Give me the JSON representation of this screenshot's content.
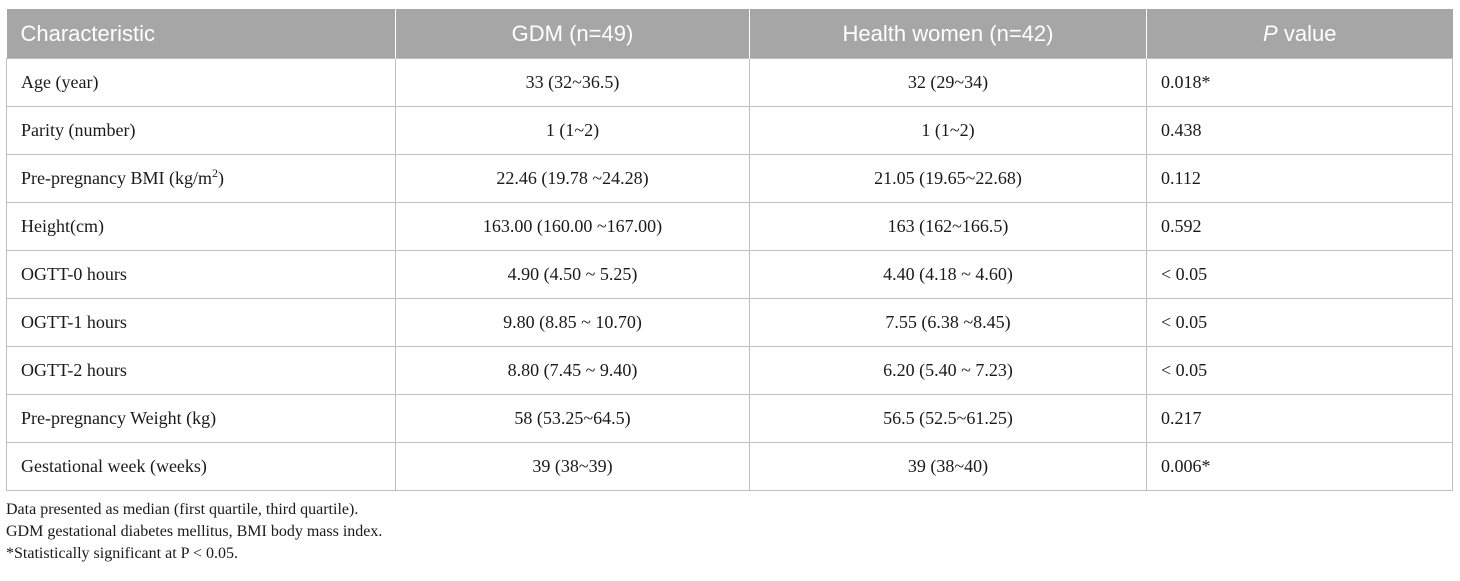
{
  "table": {
    "headers": {
      "characteristic": "Characteristic",
      "gdm": "GDM (n=49)",
      "health": "Health women (n=42)",
      "p_italic": "P",
      "p_rest": " value"
    },
    "rows": [
      {
        "label": "Age (year)",
        "gdm": "33 (32~36.5)",
        "health": "32 (29~34)",
        "p": "0.018*"
      },
      {
        "label": "Parity (number)",
        "gdm": "1 (1~2)",
        "health": "1 (1~2)",
        "p": "0.438"
      },
      {
        "label": "Pre-pregnancy BMI (kg/m",
        "label_sup": "2",
        "label_after": ")",
        "gdm": "22.46 (19.78 ~24.28)",
        "health": "21.05 (19.65~22.68)",
        "p": "0.112"
      },
      {
        "label": "Height(cm)",
        "gdm": "163.00 (160.00 ~167.00)",
        "health": "163 (162~166.5)",
        "p": "0.592"
      },
      {
        "label": "OGTT-0 hours",
        "gdm": "4.90 (4.50 ~ 5.25)",
        "health": "4.40 (4.18 ~ 4.60)",
        "p": "< 0.05"
      },
      {
        "label": "OGTT-1 hours",
        "gdm": "9.80 (8.85 ~ 10.70)",
        "health": "7.55 (6.38 ~8.45)",
        "p": "< 0.05"
      },
      {
        "label": "OGTT-2 hours",
        "gdm": "8.80 (7.45 ~ 9.40)",
        "health": "6.20 (5.40 ~ 7.23)",
        "p": "< 0.05"
      },
      {
        "label": "Pre-pregnancy Weight (kg)",
        "gdm": "58 (53.25~64.5)",
        "health": "56.5 (52.5~61.25)",
        "p": "0.217"
      },
      {
        "label": "Gestational week (weeks)",
        "gdm": "39 (38~39)",
        "health": "39 (38~40)",
        "p": "0.006*"
      }
    ]
  },
  "notes": [
    "Data presented as median (first quartile, third quartile).",
    "GDM gestational diabetes mellitus, BMI body mass index.",
    "*Statistically significant at P < 0.05."
  ],
  "colors": {
    "header_bg": "#a6a6a6",
    "header_text": "#ffffff",
    "grid": "#bfbfbf"
  }
}
